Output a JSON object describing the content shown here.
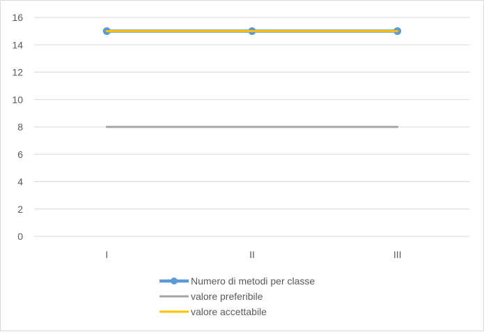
{
  "chart_data": {
    "type": "line",
    "categories": [
      "I",
      "II",
      "III"
    ],
    "ylim": [
      0,
      16
    ],
    "yticks": [
      0,
      2,
      4,
      6,
      8,
      10,
      12,
      14,
      16
    ],
    "grid": true,
    "legend_position": "bottom",
    "series": [
      {
        "name": "Numero di metodi per classe",
        "values": [
          15,
          15,
          15
        ],
        "color": "#5b9bd5",
        "markers": true
      },
      {
        "name": "valore preferibile",
        "values": [
          8,
          8,
          8
        ],
        "color": "#a5a5a5",
        "markers": false
      },
      {
        "name": "valore accettabile",
        "values": [
          15,
          15,
          15
        ],
        "color": "#ffc000",
        "markers": false
      }
    ]
  }
}
